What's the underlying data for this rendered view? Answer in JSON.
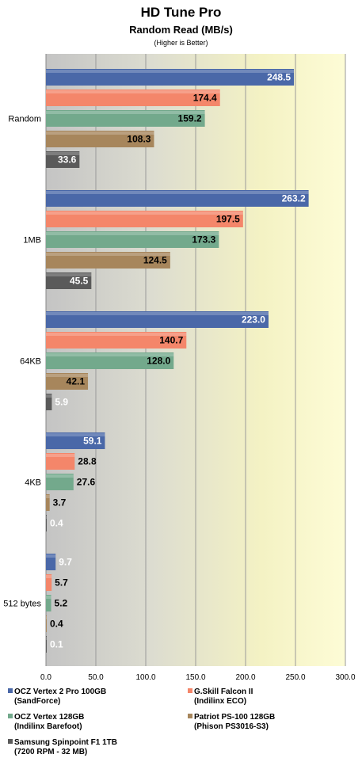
{
  "titles": {
    "main": "HD Tune Pro",
    "sub": "Random Read (MB/s)",
    "note": "(Higher is Better)"
  },
  "chart_data": {
    "type": "bar",
    "orientation": "horizontal",
    "categories": [
      "Random",
      "1MB",
      "64KB",
      "4KB",
      "512 bytes"
    ],
    "series": [
      {
        "name": "OCZ Vertex 2 Pro 100GB (SandForce)",
        "color": "#4a68a8",
        "values": [
          248.5,
          263.2,
          223.0,
          59.1,
          9.7
        ]
      },
      {
        "name": "G.Skill Falcon II (Indilinx ECO)",
        "color": "#f4866a",
        "values": [
          174.4,
          197.5,
          140.7,
          28.8,
          5.7
        ]
      },
      {
        "name": "OCZ Vertex 128GB (Indilinx Barefoot)",
        "color": "#73a98c",
        "values": [
          159.2,
          173.3,
          128.0,
          27.6,
          5.2
        ]
      },
      {
        "name": "Patriot  PS-100 128GB (Phison PS3016-S3)",
        "color": "#a7865c",
        "values": [
          108.3,
          124.5,
          42.1,
          3.7,
          0.4
        ]
      },
      {
        "name": "Samsung Spinpoint F1 1TB (7200 RPM - 32 MB)",
        "color": "#5a5a5a",
        "values": [
          33.6,
          45.5,
          5.9,
          0.4,
          0.1
        ]
      }
    ],
    "xlim": [
      0,
      300
    ],
    "xticks": [
      "0.0",
      "50.0",
      "100.0",
      "150.0",
      "200.0",
      "250.0",
      "300.0"
    ],
    "grid": true,
    "legend_position": "bottom"
  },
  "legend": [
    {
      "line1": "OCZ Vertex 2 Pro 100GB",
      "line2": "(SandForce)",
      "color": "#4a68a8"
    },
    {
      "line1": "G.Skill Falcon II",
      "line2": "(Indilinx ECO)",
      "color": "#f4866a"
    },
    {
      "line1": "OCZ Vertex 128GB",
      "line2": "(Indilinx Barefoot)",
      "color": "#73a98c"
    },
    {
      "line1": "Patriot  PS-100 128GB",
      "line2": "(Phison PS3016-S3)",
      "color": "#a7865c"
    },
    {
      "line1": "Samsung Spinpoint F1 1TB",
      "line2": "(7200 RPM - 32 MB)",
      "color": "#5a5a5a"
    }
  ]
}
